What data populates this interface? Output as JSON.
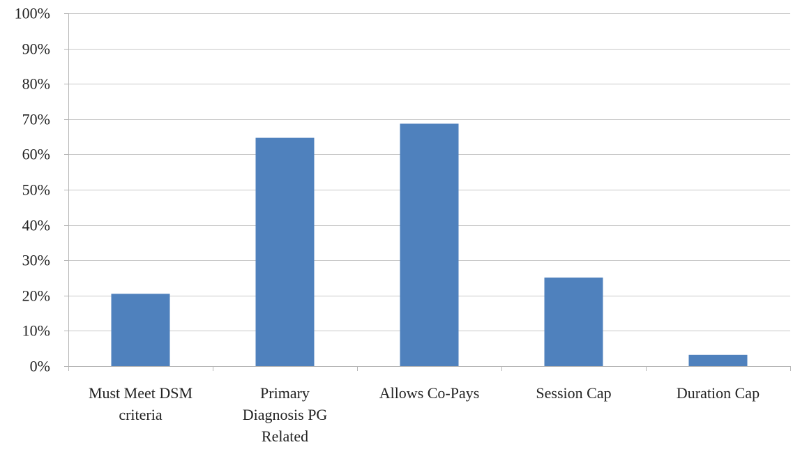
{
  "chart_data": {
    "type": "bar",
    "categories": [
      [
        "Must Meet DSM",
        "criteria"
      ],
      [
        "Primary",
        "Diagnosis PG",
        "Related"
      ],
      [
        "Allows Co-Pays"
      ],
      [
        "Session Cap"
      ],
      [
        "Duration Cap"
      ]
    ],
    "values": [
      0.205,
      0.647,
      0.687,
      0.251,
      0.032
    ],
    "ylim": [
      0,
      1
    ],
    "yticks": [
      0,
      0.1,
      0.2,
      0.3,
      0.4,
      0.5,
      0.6,
      0.7,
      0.8,
      0.9,
      1.0
    ],
    "ytick_labels": [
      "0%",
      "10%",
      "20%",
      "30%",
      "40%",
      "50%",
      "60%",
      "70%",
      "80%",
      "90%",
      "100%"
    ],
    "grid": true,
    "bar_color": "#4f81bd"
  }
}
